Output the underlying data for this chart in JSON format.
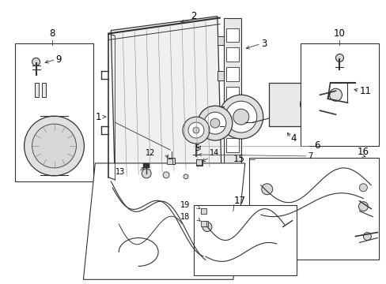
{
  "bg_color": "#ffffff",
  "line_color": "#333333",
  "text_color": "#000000",
  "fig_width": 4.89,
  "fig_height": 3.6,
  "dpi": 100,
  "label_fontsize": 8.5,
  "small_fontsize": 7.0
}
